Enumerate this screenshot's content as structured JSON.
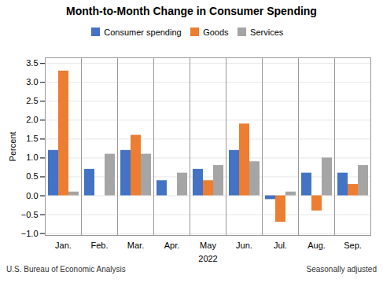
{
  "chart_data": {
    "type": "bar",
    "title": "Month-to-Month Change in Consumer Spending",
    "xlabel": "2022",
    "ylabel": "Percent",
    "categories": [
      "Jan.",
      "Feb.",
      "Mar.",
      "Apr.",
      "May",
      "Jun.",
      "Jul.",
      "Aug.",
      "Sep."
    ],
    "series": [
      {
        "name": "Consumer spending",
        "color": "#4472C4",
        "values": [
          1.2,
          0.7,
          1.2,
          0.4,
          0.7,
          1.2,
          -0.1,
          0.6,
          0.6
        ]
      },
      {
        "name": "Goods",
        "color": "#ED7D31",
        "values": [
          3.3,
          0.0,
          1.6,
          0.0,
          0.4,
          1.9,
          -0.7,
          -0.4,
          0.3
        ]
      },
      {
        "name": "Services",
        "color": "#A5A5A5",
        "values": [
          0.1,
          1.1,
          1.1,
          0.6,
          0.8,
          0.9,
          0.1,
          1.0,
          0.8
        ]
      }
    ],
    "ylim": [
      -1.05,
      3.65
    ],
    "yticks": [
      {
        "value": -1.0,
        "label": "−1.0"
      },
      {
        "value": -0.5,
        "label": "−0.5"
      },
      {
        "value": 0.0,
        "label": "0.0"
      },
      {
        "value": 0.5,
        "label": "0.5"
      },
      {
        "value": 1.0,
        "label": "1.0"
      },
      {
        "value": 1.5,
        "label": "1.5"
      },
      {
        "value": 2.0,
        "label": "2.0"
      },
      {
        "value": 2.5,
        "label": "2.5"
      },
      {
        "value": 3.0,
        "label": "3.0"
      },
      {
        "value": 3.5,
        "label": "3.5"
      }
    ],
    "grid": true,
    "legend": "top",
    "annotations": [
      "U.S. Bureau of Economic Analysis",
      "Seasonally adjusted"
    ]
  }
}
